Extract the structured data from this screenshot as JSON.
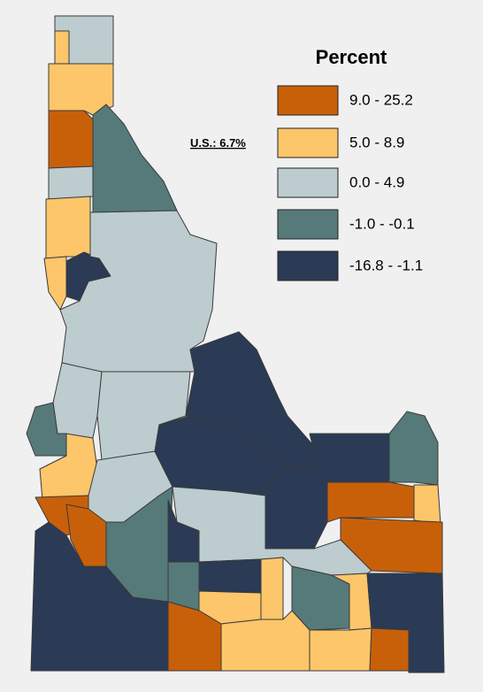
{
  "legend": {
    "title": "Percent",
    "items": [
      {
        "label": "9.0 - 25.2",
        "color": "#c8600a"
      },
      {
        "label": "5.0 - 8.9",
        "color": "#fdc66a"
      },
      {
        "label": "0.0 - 4.9",
        "color": "#bccccf"
      },
      {
        "label": "-1.0 - -0.1",
        "color": "#567a7a"
      },
      {
        "label": "-16.8 - -1.1",
        "color": "#2b3a55"
      }
    ]
  },
  "note": "U.S.: 6.7%"
}
